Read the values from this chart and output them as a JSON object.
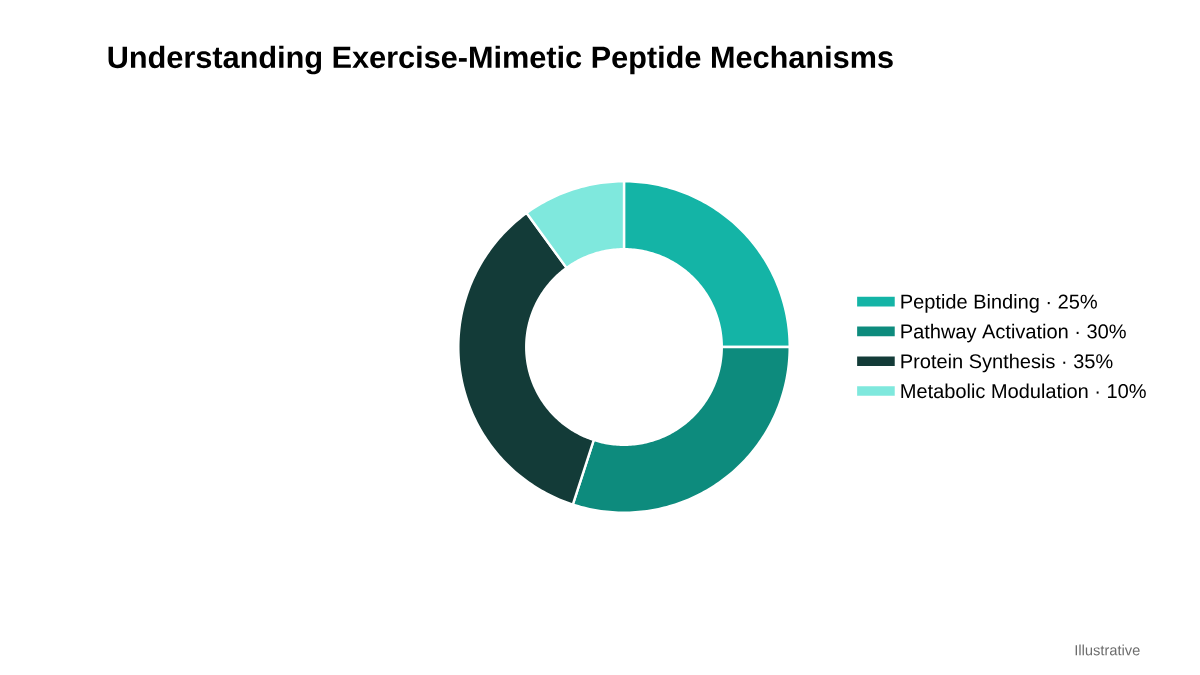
{
  "chart_data": {
    "type": "donut",
    "title": "Understanding Exercise-Mimetic Peptide Mechanisms",
    "categories": [
      "Peptide Binding · 25%",
      "Pathway Activation · 30%",
      "Protein Synthesis · 35%",
      "Metabolic Modulation · 10%"
    ],
    "values": [
      25,
      30,
      35,
      10
    ],
    "colors": [
      "#14b4a6",
      "#0d8b7d",
      "#133b38",
      "#7fe8dd"
    ],
    "legend": "right",
    "annotations": [
      "Illustrative"
    ]
  }
}
